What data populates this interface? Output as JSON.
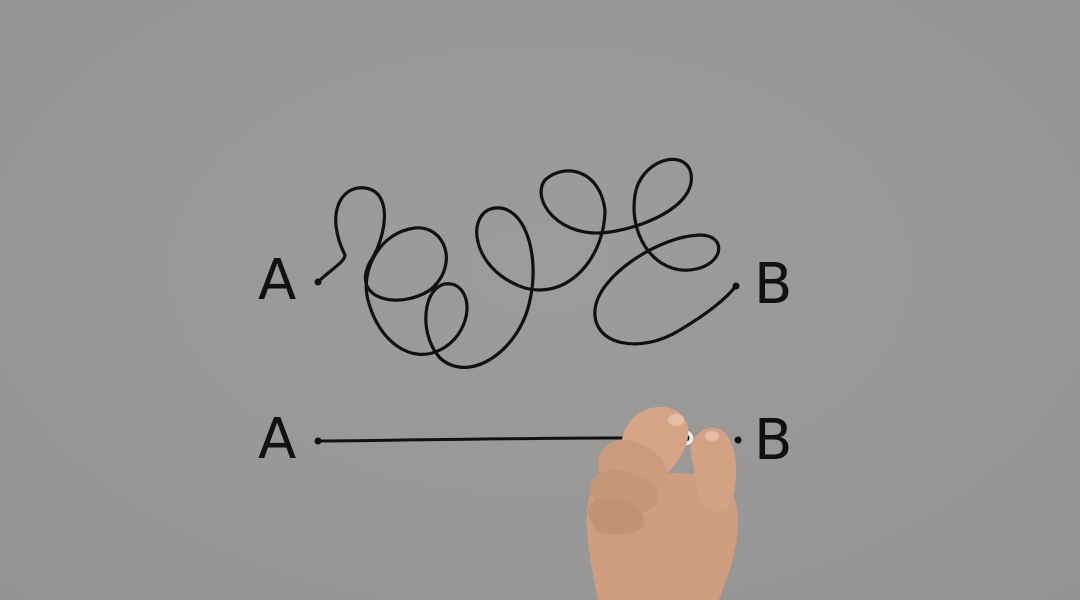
{
  "labels": {
    "top_start": "A",
    "top_end": "B",
    "bottom_start": "A",
    "bottom_end": "B"
  },
  "colors": {
    "background": "#999998",
    "ink": "#111111",
    "skin": "#d9a889"
  }
}
